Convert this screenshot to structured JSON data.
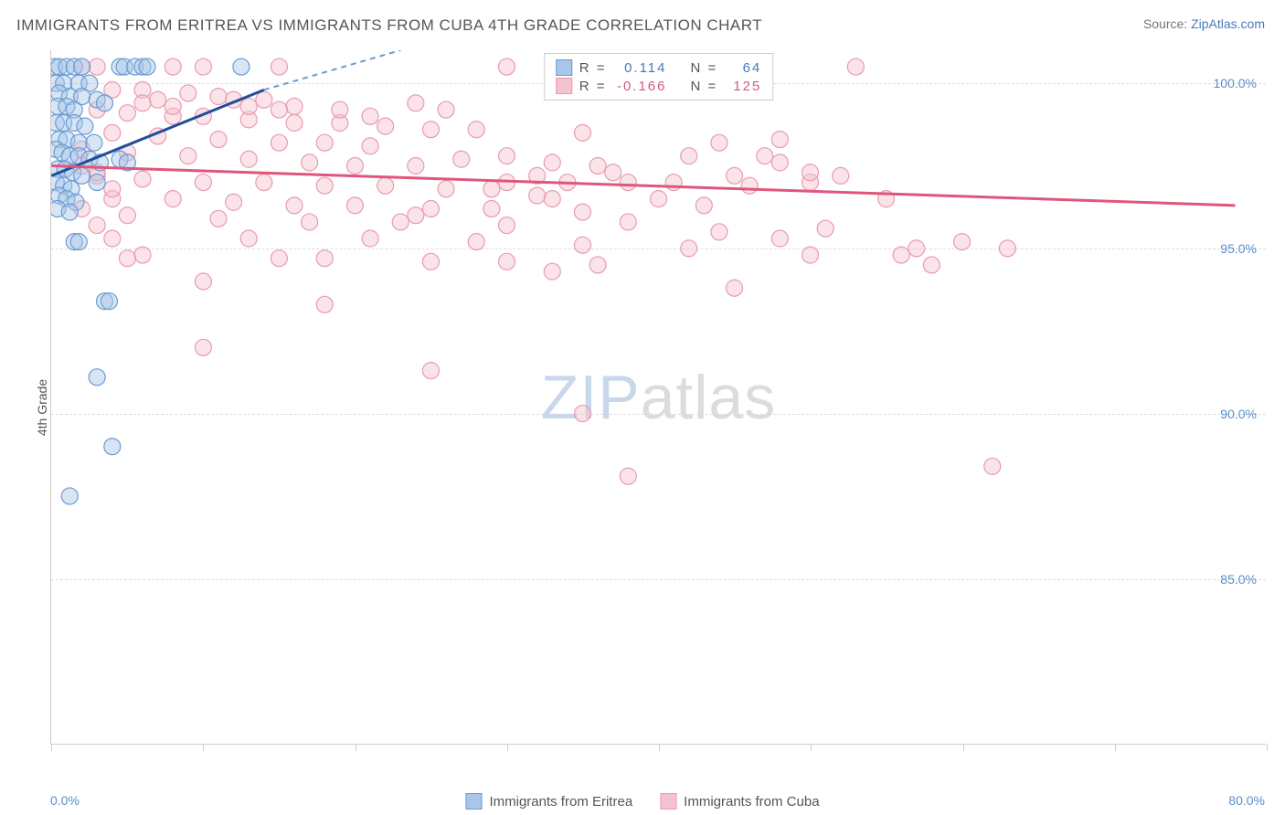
{
  "title": "IMMIGRANTS FROM ERITREA VS IMMIGRANTS FROM CUBA 4TH GRADE CORRELATION CHART",
  "source": {
    "label": "Source: ",
    "name": "ZipAtlas.com"
  },
  "y_axis_label": "4th Grade",
  "watermark": {
    "zip": "ZIP",
    "atlas": "atlas"
  },
  "chart": {
    "type": "scatter",
    "xlim": [
      0,
      80
    ],
    "ylim": [
      80,
      101
    ],
    "y_ticks": [
      85,
      90,
      95,
      100
    ],
    "y_tick_labels": [
      "85.0%",
      "90.0%",
      "95.0%",
      "100.0%"
    ],
    "x_ticks": [
      0,
      10,
      20,
      30,
      40,
      50,
      60,
      70,
      80
    ],
    "x_min_label": "0.0%",
    "x_max_label": "80.0%",
    "background": "#ffffff",
    "grid_color": "#dddddd",
    "axis_color": "#cccccc",
    "tick_label_color": "#5b8dc9",
    "marker_radius": 9,
    "marker_opacity": 0.45,
    "series": [
      {
        "id": "eritrea",
        "label": "Immigrants from Eritrea",
        "color_fill": "#a8c6e8",
        "color_stroke": "#6a9bd1",
        "trend_color": "#1f4e9c",
        "trend_dash_color": "#6a9bd1",
        "r": "0.114",
        "n": "64",
        "trend": {
          "x1": 0,
          "y1": 97.2,
          "x2_solid": 14,
          "y2_solid": 99.8,
          "x2_dash": 23,
          "y2_dash": 101
        },
        "points": [
          [
            0.2,
            100.5
          ],
          [
            0.5,
            100.5
          ],
          [
            1.0,
            100.5
          ],
          [
            1.5,
            100.5
          ],
          [
            2.0,
            100.5
          ],
          [
            4.5,
            100.5
          ],
          [
            4.8,
            100.5
          ],
          [
            5.5,
            100.5
          ],
          [
            6.0,
            100.5
          ],
          [
            6.3,
            100.5
          ],
          [
            12.5,
            100.5
          ],
          [
            0.3,
            100.0
          ],
          [
            0.8,
            100.0
          ],
          [
            1.8,
            100.0
          ],
          [
            2.5,
            100.0
          ],
          [
            0.5,
            99.7
          ],
          [
            1.2,
            99.6
          ],
          [
            2.0,
            99.6
          ],
          [
            3.0,
            99.5
          ],
          [
            3.5,
            99.4
          ],
          [
            0.4,
            99.3
          ],
          [
            1.0,
            99.3
          ],
          [
            1.5,
            99.2
          ],
          [
            0.3,
            98.8
          ],
          [
            0.8,
            98.8
          ],
          [
            1.5,
            98.8
          ],
          [
            2.2,
            98.7
          ],
          [
            0.5,
            98.3
          ],
          [
            1.0,
            98.3
          ],
          [
            1.8,
            98.2
          ],
          [
            2.8,
            98.2
          ],
          [
            0.3,
            98.0
          ],
          [
            0.7,
            97.9
          ],
          [
            1.2,
            97.8
          ],
          [
            1.8,
            97.8
          ],
          [
            2.5,
            97.7
          ],
          [
            3.2,
            97.6
          ],
          [
            0.4,
            97.4
          ],
          [
            0.9,
            97.4
          ],
          [
            1.4,
            97.3
          ],
          [
            2.0,
            97.2
          ],
          [
            4.5,
            97.7
          ],
          [
            5.0,
            97.6
          ],
          [
            0.3,
            97.0
          ],
          [
            0.8,
            96.9
          ],
          [
            1.3,
            96.8
          ],
          [
            3.0,
            97.0
          ],
          [
            0.5,
            96.6
          ],
          [
            1.0,
            96.5
          ],
          [
            1.6,
            96.4
          ],
          [
            0.4,
            96.2
          ],
          [
            1.2,
            96.1
          ],
          [
            1.5,
            95.2
          ],
          [
            1.8,
            95.2
          ],
          [
            3.5,
            93.4
          ],
          [
            3.8,
            93.4
          ],
          [
            3.0,
            91.1
          ],
          [
            4.0,
            89.0
          ],
          [
            1.2,
            87.5
          ]
        ]
      },
      {
        "id": "cuba",
        "label": "Immigrants from Cuba",
        "color_fill": "#f5c2cf",
        "color_stroke": "#e89bb0",
        "trend_color": "#e0567a",
        "r": "-0.166",
        "n": "125",
        "trend": {
          "x1": 0,
          "y1": 97.5,
          "x2_solid": 78,
          "y2_solid": 96.3
        },
        "points": [
          [
            2,
            100.5
          ],
          [
            3,
            100.5
          ],
          [
            8,
            100.5
          ],
          [
            10,
            100.5
          ],
          [
            15,
            100.5
          ],
          [
            30,
            100.5
          ],
          [
            4,
            99.8
          ],
          [
            6,
            99.8
          ],
          [
            9,
            99.7
          ],
          [
            11,
            99.6
          ],
          [
            14,
            99.5
          ],
          [
            7,
            99.5
          ],
          [
            12,
            99.5
          ],
          [
            53,
            100.5
          ],
          [
            3,
            99.2
          ],
          [
            5,
            99.1
          ],
          [
            8,
            99.0
          ],
          [
            10,
            99.0
          ],
          [
            13,
            98.9
          ],
          [
            16,
            98.8
          ],
          [
            19,
            98.8
          ],
          [
            22,
            98.7
          ],
          [
            25,
            98.6
          ],
          [
            28,
            98.6
          ],
          [
            4,
            98.5
          ],
          [
            7,
            98.4
          ],
          [
            11,
            98.3
          ],
          [
            15,
            98.2
          ],
          [
            18,
            98.2
          ],
          [
            21,
            98.1
          ],
          [
            2,
            98.0
          ],
          [
            5,
            97.9
          ],
          [
            9,
            97.8
          ],
          [
            13,
            97.7
          ],
          [
            17,
            97.6
          ],
          [
            20,
            97.5
          ],
          [
            24,
            97.5
          ],
          [
            27,
            97.7
          ],
          [
            30,
            97.8
          ],
          [
            33,
            97.6
          ],
          [
            36,
            97.5
          ],
          [
            35,
            98.5
          ],
          [
            3,
            97.2
          ],
          [
            6,
            97.1
          ],
          [
            10,
            97.0
          ],
          [
            14,
            97.0
          ],
          [
            18,
            96.9
          ],
          [
            22,
            96.9
          ],
          [
            26,
            96.8
          ],
          [
            29,
            96.8
          ],
          [
            32,
            97.2
          ],
          [
            38,
            97.0
          ],
          [
            42,
            97.8
          ],
          [
            45,
            97.2
          ],
          [
            48,
            97.6
          ],
          [
            50,
            97.0
          ],
          [
            44,
            98.2
          ],
          [
            4,
            96.5
          ],
          [
            8,
            96.5
          ],
          [
            12,
            96.4
          ],
          [
            16,
            96.3
          ],
          [
            20,
            96.3
          ],
          [
            25,
            96.2
          ],
          [
            29,
            96.2
          ],
          [
            35,
            96.1
          ],
          [
            33,
            96.5
          ],
          [
            40,
            96.5
          ],
          [
            43,
            96.3
          ],
          [
            46,
            96.9
          ],
          [
            52,
            97.2
          ],
          [
            55,
            96.5
          ],
          [
            5,
            96.0
          ],
          [
            11,
            95.9
          ],
          [
            17,
            95.8
          ],
          [
            23,
            95.8
          ],
          [
            30,
            95.7
          ],
          [
            24,
            96.0
          ],
          [
            38,
            95.8
          ],
          [
            13,
            95.3
          ],
          [
            21,
            95.3
          ],
          [
            28,
            95.2
          ],
          [
            35,
            95.1
          ],
          [
            42,
            95.0
          ],
          [
            44,
            95.5
          ],
          [
            50,
            94.8
          ],
          [
            6,
            94.8
          ],
          [
            15,
            94.7
          ],
          [
            18,
            94.7
          ],
          [
            25,
            94.6
          ],
          [
            30,
            94.6
          ],
          [
            45,
            93.8
          ],
          [
            10,
            94.0
          ],
          [
            10,
            92.0
          ],
          [
            18,
            93.3
          ],
          [
            33,
            94.3
          ],
          [
            36,
            94.5
          ],
          [
            56,
            94.8
          ],
          [
            57,
            95.0
          ],
          [
            25,
            91.3
          ],
          [
            35,
            90.0
          ],
          [
            38,
            88.1
          ],
          [
            60,
            95.2
          ],
          [
            63,
            95.0
          ],
          [
            58,
            94.5
          ],
          [
            62,
            88.4
          ],
          [
            37,
            97.3
          ],
          [
            41,
            97.0
          ],
          [
            48,
            95.3
          ],
          [
            51,
            95.6
          ],
          [
            47,
            97.8
          ],
          [
            48,
            98.3
          ],
          [
            50,
            97.3
          ],
          [
            30,
            97.0
          ],
          [
            32,
            96.6
          ],
          [
            34,
            97.0
          ],
          [
            16,
            99.3
          ],
          [
            19,
            99.2
          ],
          [
            21,
            99.0
          ],
          [
            24,
            99.4
          ],
          [
            26,
            99.2
          ],
          [
            6,
            99.4
          ],
          [
            8,
            99.3
          ],
          [
            13,
            99.3
          ],
          [
            15,
            99.2
          ],
          [
            2,
            97.5
          ],
          [
            3,
            97.3
          ],
          [
            4,
            96.8
          ],
          [
            2,
            96.2
          ],
          [
            3,
            95.7
          ],
          [
            4,
            95.3
          ],
          [
            5,
            94.7
          ]
        ]
      }
    ]
  },
  "legend_top": {
    "rows": [
      {
        "sw_fill": "#a8c6e8",
        "sw_stroke": "#6a9bd1",
        "r_label": "R = ",
        "r_val": "0.114",
        "n_label": "N = ",
        "n_val": "64",
        "color": "#4a7ab8"
      },
      {
        "sw_fill": "#f5c2cf",
        "sw_stroke": "#e89bb0",
        "r_label": "R = ",
        "r_val": "-0.166",
        "n_label": "N = ",
        "n_val": "125",
        "color": "#d85a7a"
      }
    ]
  },
  "legend_bottom": {
    "items": [
      {
        "sw_fill": "#a8c6e8",
        "sw_stroke": "#6a9bd1",
        "label": "Immigrants from Eritrea"
      },
      {
        "sw_fill": "#f5c2cf",
        "sw_stroke": "#e89bb0",
        "label": "Immigrants from Cuba"
      }
    ]
  }
}
